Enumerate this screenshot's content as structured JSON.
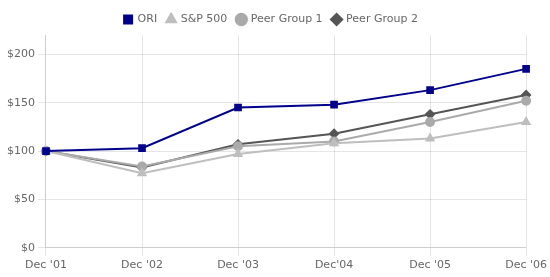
{
  "chart_data": {
    "type": "line",
    "categories": [
      "Dec '01",
      "Dec '02",
      "Dec '03",
      "Dec'04",
      "Dec '05",
      "Dec '06"
    ],
    "series": [
      {
        "name": "ORI",
        "color": "#00008B",
        "marker": "square",
        "values": [
          100,
          103,
          145,
          148,
          163,
          185
        ]
      },
      {
        "name": "S&P 500",
        "color": "#BEBEBE",
        "marker": "triangle",
        "values": [
          100,
          77,
          97,
          108,
          113,
          130
        ]
      },
      {
        "name": "Peer Group 1",
        "color": "#AAAAAA",
        "marker": "circle",
        "values": [
          100,
          84,
          105,
          110,
          130,
          152
        ]
      },
      {
        "name": "Peer Group 2",
        "color": "#555555",
        "marker": "diamond",
        "values": [
          100,
          83,
          107,
          118,
          138,
          158
        ]
      }
    ],
    "ylim": [
      0,
      220
    ],
    "yticks": [
      {
        "value": 0,
        "label": "$0"
      },
      {
        "value": 50,
        "label": "$50"
      },
      {
        "value": 100,
        "label": "$100"
      },
      {
        "value": 150,
        "label": "$150"
      },
      {
        "value": 200,
        "label": "$200"
      }
    ],
    "grid": true,
    "legend": "top"
  }
}
